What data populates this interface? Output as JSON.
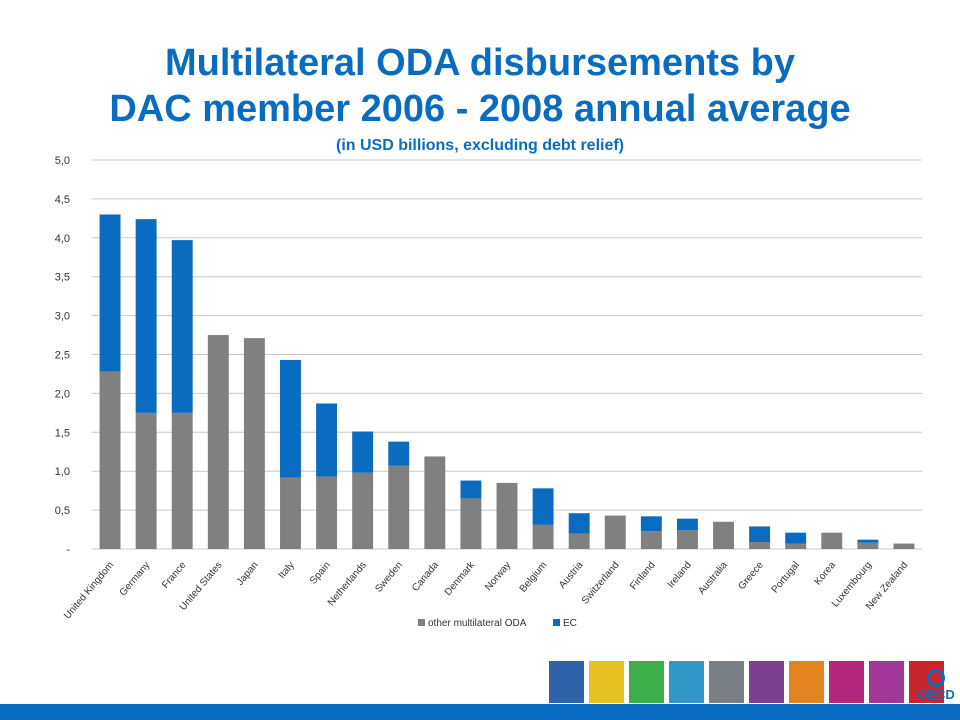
{
  "header": {
    "title_line1": "Multilateral ODA disbursements by",
    "title_line2": "DAC member 2006 - 2008 annual average",
    "subtitle": "(in USD billions, excluding debt relief)"
  },
  "colors": {
    "title": "#0a6cc0",
    "other": "#808080",
    "ec": "#0a6cc0",
    "grid": "#c8c8c8",
    "footer": "#0a6cc0"
  },
  "chart_data": {
    "type": "bar",
    "stacked": true,
    "categories": [
      "United Kingdom",
      "Germany",
      "France",
      "United States",
      "Japan",
      "Italy",
      "Spain",
      "Netherlands",
      "Sweden",
      "Canada",
      "Denmark",
      "Norway",
      "Belgium",
      "Austria",
      "Switzerland",
      "Finland",
      "Ireland",
      "Australia",
      "Greece",
      "Portugal",
      "Korea",
      "Luxembourg",
      "New Zealand"
    ],
    "series": [
      {
        "name": "other multilateral ODA",
        "color": "#808080",
        "values": [
          2.28,
          1.75,
          1.75,
          2.75,
          2.71,
          0.92,
          0.93,
          0.98,
          1.07,
          1.19,
          0.65,
          0.85,
          0.31,
          0.2,
          0.43,
          0.23,
          0.24,
          0.35,
          0.09,
          0.07,
          0.21,
          0.08,
          0.07
        ]
      },
      {
        "name": "EC",
        "color": "#0a6cc0",
        "values": [
          2.02,
          2.49,
          2.22,
          0,
          0,
          1.51,
          0.94,
          0.53,
          0.31,
          0,
          0.23,
          0,
          0.47,
          0.26,
          0,
          0.19,
          0.15,
          0,
          0.2,
          0.14,
          0,
          0.04,
          0
        ]
      }
    ],
    "ylim": [
      0,
      5
    ],
    "yticks": [
      "-",
      "0,5",
      "1,0",
      "1,5",
      "2,0",
      "2,5",
      "3,0",
      "3,5",
      "4,0",
      "4,5",
      "5,0"
    ],
    "grid": true,
    "legend": "bottom"
  },
  "footer": {
    "logo_tiles": [
      "#2f63a8",
      "#e7c223",
      "#3cae4a",
      "#2f98c9",
      "#7a7f86",
      "#7b3f8e",
      "#e4831f",
      "#b5267d",
      "#a2379a",
      "#c8262c"
    ],
    "brand": "OECD"
  }
}
